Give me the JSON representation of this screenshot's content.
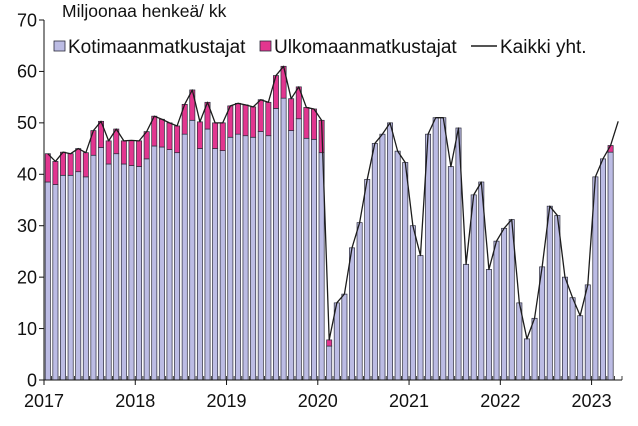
{
  "chart_data": {
    "type": "bar",
    "stacked": true,
    "ylabel": "Miljoonaa henkeä/ kk",
    "ylim": [
      0,
      70
    ],
    "yticks": [
      0,
      10,
      20,
      30,
      40,
      50,
      60,
      70
    ],
    "xticks": [
      "2017",
      "2018",
      "2019",
      "2020",
      "2021",
      "2022",
      "2023"
    ],
    "xlim": [
      "2017-01",
      "2023-04"
    ],
    "grid": false,
    "legend_position": "top",
    "outline_color": "#2a2a3a",
    "x": [
      "2017-01",
      "2017-02",
      "2017-03",
      "2017-04",
      "2017-05",
      "2017-06",
      "2017-07",
      "2017-08",
      "2017-09",
      "2017-10",
      "2017-11",
      "2017-12",
      "2018-01",
      "2018-02",
      "2018-03",
      "2018-04",
      "2018-05",
      "2018-06",
      "2018-07",
      "2018-08",
      "2018-09",
      "2018-10",
      "2018-11",
      "2018-12",
      "2019-01",
      "2019-02",
      "2019-03",
      "2019-04",
      "2019-05",
      "2019-06",
      "2019-07",
      "2019-08",
      "2019-09",
      "2019-10",
      "2019-11",
      "2019-12",
      "2020-01",
      "2020-02",
      "2020-03",
      "2020-04",
      "2020-05",
      "2020-06",
      "2020-07",
      "2020-08",
      "2020-09",
      "2020-10",
      "2020-11",
      "2020-12",
      "2021-01",
      "2021-02",
      "2021-03",
      "2021-04",
      "2021-05",
      "2021-06",
      "2021-07",
      "2021-08",
      "2021-09",
      "2021-10",
      "2021-11",
      "2021-12",
      "2022-01",
      "2022-02",
      "2022-03",
      "2022-04",
      "2022-05",
      "2022-06",
      "2022-07",
      "2022-08",
      "2022-09",
      "2022-10",
      "2022-11",
      "2022-12",
      "2023-01",
      "2023-02",
      "2023-03",
      "2023-04"
    ],
    "series": [
      {
        "name": "Kotimaanmatkustajat",
        "kind": "bar",
        "color": "#bcbce4",
        "values": [
          38.5,
          38.0,
          39.8,
          39.8,
          40.5,
          39.5,
          43.7,
          45.2,
          42.0,
          44.0,
          42.0,
          41.7,
          41.5,
          43.0,
          45.5,
          45.3,
          44.8,
          44.2,
          47.8,
          50.5,
          45.0,
          48.8,
          45.0,
          44.6,
          47.2,
          47.8,
          47.5,
          47.2,
          48.3,
          47.5,
          52.8,
          54.8,
          48.5,
          50.8,
          47.0,
          46.8,
          44.2,
          6.6,
          15.0,
          16.7,
          25.7,
          30.6,
          39.0,
          46.0,
          47.8,
          50.0,
          44.5,
          42.3,
          30.0,
          24.2,
          47.8,
          51.0,
          51.0,
          41.5,
          49.0,
          22.5,
          36.0,
          38.5,
          21.5,
          27.0,
          29.5,
          31.2,
          15.0,
          8.0,
          12.0,
          22.0,
          33.8,
          32.0,
          20.0,
          16.0,
          12.5,
          18.5,
          39.5,
          43.0,
          44.3,
          null
        ]
      },
      {
        "name": "Ulkomaanmatkustajat",
        "kind": "bar",
        "color": "#e2368f",
        "values": [
          5.5,
          4.5,
          4.5,
          4.2,
          4.5,
          4.7,
          4.8,
          5.1,
          4.5,
          4.8,
          4.5,
          4.9,
          5.0,
          5.3,
          5.8,
          5.4,
          5.2,
          5.2,
          5.8,
          5.9,
          5.2,
          5.2,
          5.0,
          5.4,
          6.1,
          6.0,
          6.0,
          5.9,
          6.2,
          6.5,
          6.4,
          6.2,
          6.2,
          6.2,
          6.0,
          5.9,
          6.3,
          1.2,
          0,
          0,
          0,
          0,
          0,
          0,
          0,
          0,
          0,
          0,
          0,
          0,
          0,
          0,
          0,
          0,
          0,
          0,
          0,
          0,
          0,
          0,
          0,
          0,
          0,
          0,
          0,
          0,
          0,
          0,
          0,
          0,
          0,
          0,
          0,
          0,
          1.3,
          null
        ]
      },
      {
        "name": "Kaikki yht.",
        "kind": "line",
        "color": "#1c1c1c",
        "values": [
          44.0,
          42.5,
          44.3,
          44.0,
          45.0,
          44.2,
          48.5,
          50.3,
          46.5,
          48.8,
          46.5,
          46.6,
          46.5,
          48.3,
          51.3,
          50.7,
          50.0,
          49.4,
          53.6,
          56.4,
          50.2,
          54.0,
          50.0,
          50.0,
          53.3,
          53.8,
          53.5,
          53.1,
          54.5,
          54.0,
          59.2,
          61.0,
          54.7,
          57.0,
          53.0,
          52.7,
          50.5,
          7.8,
          15.0,
          16.7,
          25.7,
          30.6,
          39.0,
          46.0,
          47.8,
          50.0,
          44.5,
          42.3,
          30.0,
          24.2,
          47.8,
          51.0,
          51.0,
          41.5,
          49.0,
          22.5,
          36.0,
          38.5,
          21.5,
          27.0,
          29.5,
          31.2,
          15.0,
          8.0,
          12.0,
          22.0,
          33.8,
          32.0,
          20.0,
          16.0,
          12.5,
          18.5,
          39.5,
          43.0,
          45.6,
          50.3
        ]
      }
    ]
  }
}
